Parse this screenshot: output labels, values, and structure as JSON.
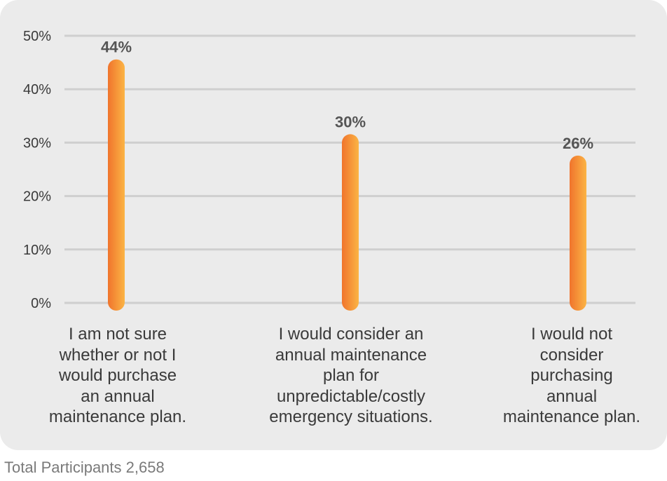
{
  "chart_data": {
    "type": "bar",
    "categories": [
      "I am not sure whether or not I would purchase an annual maintenance plan.",
      "I would consider an annual maintenance plan for unpredictable/costly emergency situations.",
      "I would not consider purchasing annual maintenance plan."
    ],
    "category_lines": [
      [
        "I am not sure",
        "whether or not I",
        "would purchase",
        "an annual",
        "maintenance plan."
      ],
      [
        "I would consider an",
        "annual maintenance",
        "plan for",
        "unpredictable/costly",
        "emergency situations."
      ],
      [
        "I would not",
        "consider",
        "purchasing",
        "annual",
        "maintenance plan."
      ]
    ],
    "values": [
      44,
      30,
      26
    ],
    "data_labels": [
      "44%",
      "30%",
      "26%"
    ],
    "ylim": [
      0,
      50
    ],
    "yticks": [
      0,
      10,
      20,
      30,
      40,
      50
    ],
    "ytick_labels": [
      "0%",
      "10%",
      "20%",
      "30%",
      "40%",
      "50%"
    ],
    "grid": true,
    "colors": {
      "bar_start": "#f0742c",
      "bar_end": "#fbb445",
      "grid": "#cfcfcf",
      "card_background": "#ebebeb",
      "text": "#3a3a3a",
      "data_label": "#555555"
    }
  },
  "footnote": "Total Participants 2,658"
}
